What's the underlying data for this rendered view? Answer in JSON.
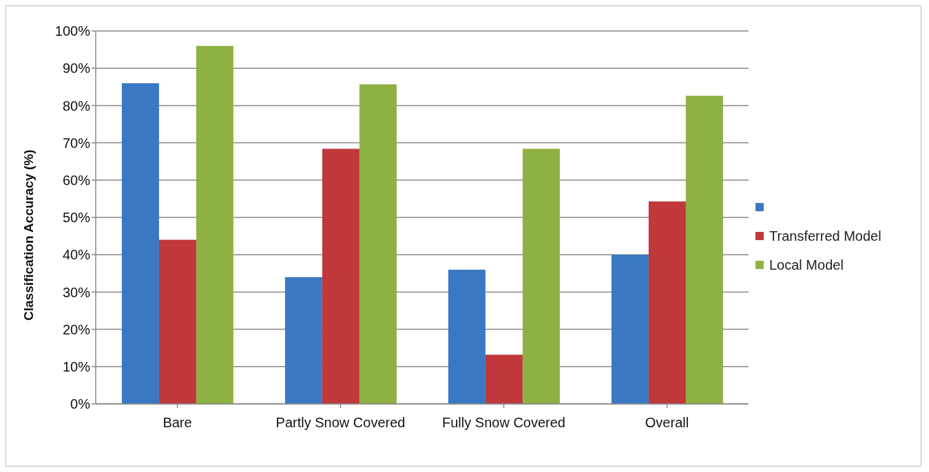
{
  "chart_data": {
    "type": "bar",
    "ylabel": "Classification Accuracy (%)",
    "categories": [
      "Bare",
      "Partly Snow Covered",
      "Fully Snow Covered",
      "Overall"
    ],
    "series": [
      {
        "color": "#3a78c4",
        "values": [
          86,
          34,
          36,
          40
        ]
      },
      {
        "name": "Transferred Model",
        "color": "#c0383a",
        "values": [
          44,
          68.4,
          13.2,
          54.3
        ]
      },
      {
        "name": "Local Model",
        "color": "#8fb144",
        "values": [
          96,
          85.7,
          68.4,
          82.6
        ]
      }
    ],
    "ylim": [
      0,
      100
    ],
    "yticks": [
      {
        "value": 0,
        "label": "0%"
      },
      {
        "value": 10,
        "label": "10%"
      },
      {
        "value": 20,
        "label": "20%"
      },
      {
        "value": 30,
        "label": "30%"
      },
      {
        "value": 40,
        "label": "40%"
      },
      {
        "value": 50,
        "label": "50%"
      },
      {
        "value": 60,
        "label": "60%"
      },
      {
        "value": 70,
        "label": "70%"
      },
      {
        "value": 80,
        "label": "80%"
      },
      {
        "value": 90,
        "label": "90%"
      },
      {
        "value": 100,
        "label": "100%"
      }
    ],
    "grid": "y",
    "legend": "right"
  }
}
